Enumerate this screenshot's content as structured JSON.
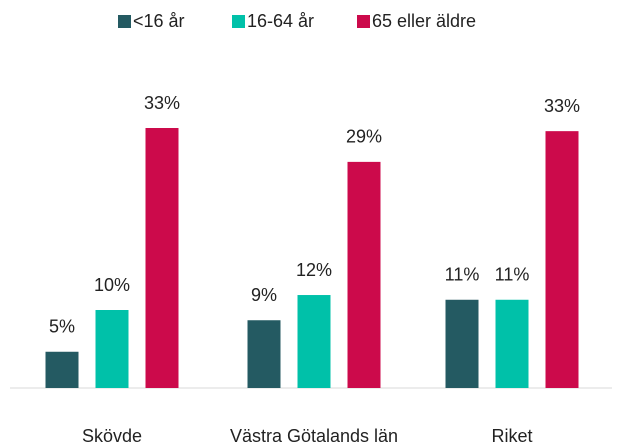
{
  "chart_data": {
    "type": "bar",
    "categories": [
      "Skövde",
      "Västra Götalands län",
      "Riket"
    ],
    "series": [
      {
        "name": "<16 år",
        "color": "#245a62",
        "values": [
          4.6,
          8.6,
          11.2
        ],
        "value_labels": [
          "5%",
          "9%",
          "11%"
        ]
      },
      {
        "name": "16-64 år",
        "color": "#00c1a9",
        "values": [
          9.9,
          11.8,
          11.2
        ],
        "value_labels": [
          "10%",
          "12%",
          "11%"
        ]
      },
      {
        "name": "65 eller äldre",
        "color": "#cc0a4b",
        "values": [
          33,
          28.7,
          32.6
        ],
        "value_labels": [
          "33%",
          "29%",
          "33%"
        ]
      }
    ],
    "legend": "top"
  }
}
